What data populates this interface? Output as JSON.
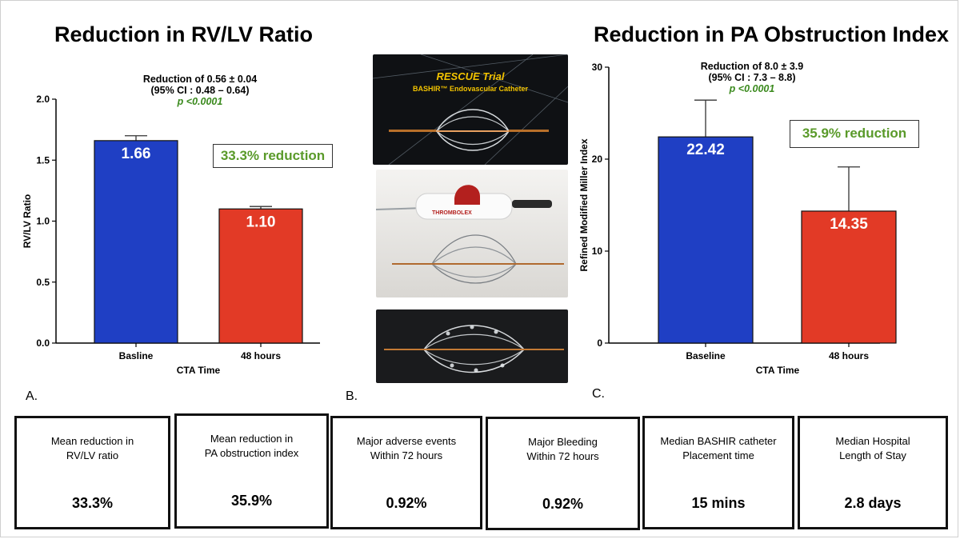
{
  "panel_a": {
    "title": "Reduction in RV/LV Ratio",
    "stats_line1": "Reduction of 0.56 ± 0.04",
    "stats_line2": "(95% CI : 0.48 – 0.64)",
    "p_value": "p <0.0001",
    "reduction_box": "33.3% reduction",
    "letter": "A."
  },
  "panel_b": {
    "letter": "B.",
    "trial_title": "RESCUE Trial",
    "trial_subtitle": "BASHIR™ Endovascular Catheter",
    "device_brand": "THROMBOLEX"
  },
  "panel_c": {
    "title": "Reduction in PA Obstruction Index",
    "stats_line1": "Reduction of 8.0 ± 3.9",
    "stats_line2": "(95% CI : 7.3 – 8.8)",
    "p_value": "p <0.0001",
    "reduction_box": "35.9% reduction",
    "letter": "C."
  },
  "chart_data": [
    {
      "type": "bar",
      "categories": [
        "Basline",
        "48 hours"
      ],
      "values": [
        1.66,
        1.1
      ],
      "value_labels": [
        "1.66",
        "1.10"
      ],
      "error_plus": [
        0.04,
        0.02
      ],
      "bar_colors": [
        "#1f3fc4",
        "#e23a26"
      ],
      "xlabel": "CTA Time",
      "ylabel": "RV/LV Ratio",
      "ylim": [
        0,
        2.0
      ],
      "yticks": [
        0.0,
        0.5,
        1.0,
        1.5,
        2.0
      ],
      "ytick_labels": [
        "0.0",
        "0.5",
        "1.0",
        "1.5",
        "2.0"
      ]
    },
    {
      "type": "bar",
      "categories": [
        "Baseline",
        "48 hours"
      ],
      "values": [
        22.42,
        14.35
      ],
      "value_labels": [
        "22.42",
        "14.35"
      ],
      "error_plus": [
        4.0,
        4.8
      ],
      "bar_colors": [
        "#1f3fc4",
        "#e23a26"
      ],
      "xlabel": "CTA Time",
      "ylabel": "Refined Modified Miller Index",
      "ylim": [
        0,
        30
      ],
      "yticks": [
        0,
        10,
        20,
        30
      ],
      "ytick_labels": [
        "0",
        "10",
        "20",
        "30"
      ]
    }
  ],
  "summary_cards": [
    {
      "label": "Mean reduction in\nRV/LV ratio",
      "value": "33.3%"
    },
    {
      "label": "Mean reduction in\nPA obstruction index",
      "value": "35.9%"
    },
    {
      "label": "Major adverse events\nWithin 72 hours",
      "value": "0.92%"
    },
    {
      "label": "Major Bleeding\nWithin 72 hours",
      "value": "0.92%"
    },
    {
      "label": "Median BASHIR catheter\nPlacement time",
      "value": "15 mins"
    },
    {
      "label": "Median Hospital\nLength of Stay",
      "value": "2.8 days"
    }
  ]
}
